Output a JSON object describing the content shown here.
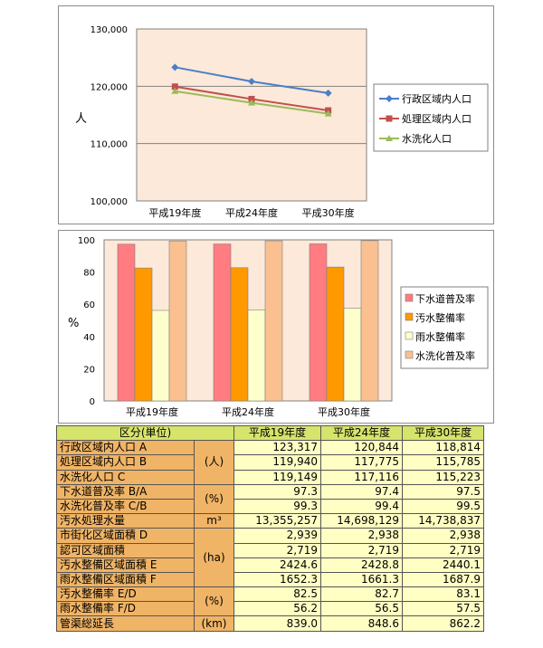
{
  "chart_data": [
    {
      "type": "line",
      "title": "",
      "xlabel": "",
      "ylabel": "人",
      "categories": [
        "平成19年度",
        "平成24年度",
        "平成30年度"
      ],
      "ylim": [
        100000,
        130000
      ],
      "yticks": [
        "100,000",
        "110,000",
        "120,000",
        "130,000"
      ],
      "grid": true,
      "legend": "right",
      "series": [
        {
          "name": "行政区域内人口",
          "values": [
            123317,
            120844,
            118814
          ],
          "color": "#4a7fc8"
        },
        {
          "name": "処理区域内人口",
          "values": [
            119940,
            117775,
            115785
          ],
          "color": "#c0504d"
        },
        {
          "name": "水洗化人口",
          "values": [
            119149,
            117116,
            115223
          ],
          "color": "#9bbb59"
        }
      ],
      "plot_bg": "#fde9d9"
    },
    {
      "type": "bar",
      "title": "",
      "xlabel": "",
      "ylabel": "%",
      "categories": [
        "平成19年度",
        "平成24年度",
        "平成30年度"
      ],
      "ylim": [
        0,
        100
      ],
      "yticks": [
        "0",
        "20",
        "40",
        "60",
        "80",
        "100"
      ],
      "legend": "right",
      "series": [
        {
          "name": "下水道普及率",
          "values": [
            97.3,
            97.4,
            97.5
          ],
          "color": "#ff7c80"
        },
        {
          "name": "汚水整備率",
          "values": [
            82.5,
            82.7,
            83.1
          ],
          "color": "#ff9900"
        },
        {
          "name": "雨水整備率",
          "values": [
            56.2,
            56.5,
            57.5
          ],
          "color": "#ffffcc"
        },
        {
          "name": "水洗化普及率",
          "values": [
            99.3,
            99.4,
            99.5
          ],
          "color": "#fac090"
        }
      ],
      "plot_bg": "#fde9d9"
    }
  ],
  "table": {
    "headers": [
      "区分(単位)",
      "平成19年度",
      "平成24年度",
      "平成30年度"
    ],
    "groups": [
      {
        "unit": "(人)",
        "rows": [
          {
            "label": "行政区域内人口 A",
            "values": [
              "123,317",
              "120,844",
              "118,814"
            ]
          },
          {
            "label": "処理区域内人口 B",
            "values": [
              "119,940",
              "117,775",
              "115,785"
            ]
          },
          {
            "label": "水洗化人口 C",
            "values": [
              "119,149",
              "117,116",
              "115,223"
            ]
          }
        ]
      },
      {
        "unit": "(%)",
        "rows": [
          {
            "label": "下水道普及率 B/A",
            "values": [
              "97.3",
              "97.4",
              "97.5"
            ]
          },
          {
            "label": "水洗化普及率 C/B",
            "values": [
              "99.3",
              "99.4",
              "99.5"
            ]
          }
        ]
      },
      {
        "unit": "m³",
        "rows": [
          {
            "label": "汚水処理水量",
            "values": [
              "13,355,257",
              "14,698,129",
              "14,738,837"
            ]
          }
        ]
      },
      {
        "unit": "(ha)",
        "rows": [
          {
            "label": "市街化区域面積 D",
            "values": [
              "2,939",
              "2,938",
              "2,938"
            ]
          },
          {
            "label": "認可区域面積",
            "values": [
              "2,719",
              "2,719",
              "2,719"
            ]
          },
          {
            "label": "汚水整備区域面積 E",
            "values": [
              "2424.6",
              "2428.8",
              "2440.1"
            ]
          },
          {
            "label": "雨水整備区域面積 F",
            "values": [
              "1652.3",
              "1661.3",
              "1687.9"
            ]
          }
        ]
      },
      {
        "unit": "(%)",
        "rows": [
          {
            "label": "汚水整備率 E/D",
            "values": [
              "82.5",
              "82.7",
              "83.1"
            ]
          },
          {
            "label": "雨水整備率 F/D",
            "values": [
              "56.2",
              "56.5",
              "57.5"
            ]
          }
        ]
      },
      {
        "unit": "(km)",
        "rows": [
          {
            "label": "管渠総延長",
            "values": [
              "839.0",
              "848.6",
              "862.2"
            ]
          }
        ]
      }
    ]
  }
}
